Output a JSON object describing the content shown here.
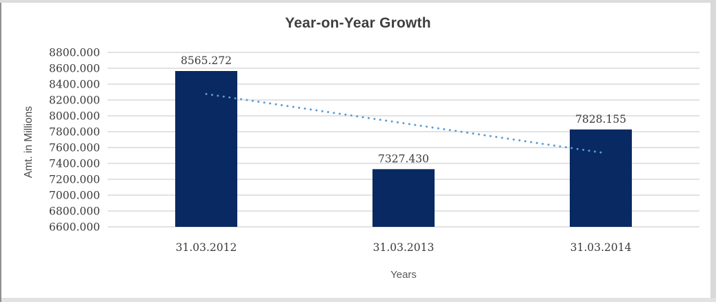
{
  "chart": {
    "title": "Year-on-Year Growth",
    "x_axis_title": "Years",
    "y_axis_title": "Amt. in Millions"
  },
  "chart_data": {
    "type": "bar",
    "title": "Year-on-Year Growth",
    "xlabel": "Years",
    "ylabel": "Amt. in Millions",
    "categories": [
      "31.03.2012",
      "31.03.2013",
      "31.03.2014"
    ],
    "values": [
      8565.272,
      7327.43,
      7828.155
    ],
    "data_labels": [
      "8565.272",
      "7327.430",
      "7828.155"
    ],
    "series_name": "",
    "ylim": [
      6600,
      8800
    ],
    "ytick_step": 200,
    "ytick_labels": [
      "6600.000",
      "6800.000",
      "7000.000",
      "7200.000",
      "7400.000",
      "7600.000",
      "7800.000",
      "8000.000",
      "8200.000",
      "8400.000",
      "8600.000",
      "8800.000"
    ],
    "grid": true,
    "legend_position": "none",
    "trendline": {
      "type": "linear",
      "style": "dotted",
      "spans": "bar1-center to bar3-center"
    }
  },
  "colors": {
    "bar": "#082961",
    "trendline": "#5b9bd5",
    "gridline": "#d9d9d9",
    "title_text": "#3f3f3f",
    "tick_text": "#3a3a3a",
    "axis_title_text": "#595959",
    "background": "#ffffff",
    "frame_edge": "#d9d9d9"
  }
}
